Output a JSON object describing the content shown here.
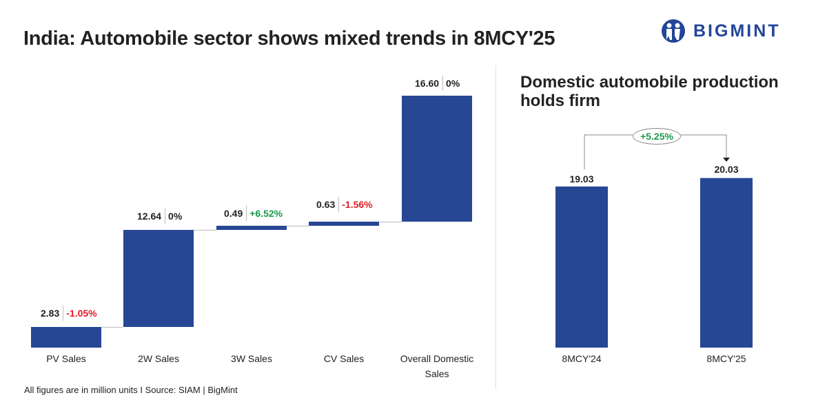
{
  "title": "India: Automobile sector shows mixed trends in 8MCY'25",
  "logo": {
    "text": "BIGMINT",
    "color": "#24449a"
  },
  "footer": "All figures are in million units  I  Source: SIAM | BigMint",
  "colors": {
    "bar": "#274794",
    "negative": "#e31b23",
    "positive": "#1a9a4a",
    "connector": "#cccccc"
  },
  "chart_data": [
    {
      "type": "waterfall",
      "title": "India: Automobile sector shows mixed trends in 8MCY'25",
      "categories": [
        "PV Sales",
        "2W Sales",
        "3W Sales",
        "CV Sales",
        "Overall Domestic Sales"
      ],
      "values": [
        2.83,
        12.64,
        0.49,
        0.63,
        16.6
      ],
      "value_labels": [
        "2.83",
        "12.64",
        "0.49",
        "0.63",
        "16.60"
      ],
      "changes": [
        "-1.05%",
        "0%",
        "+6.52%",
        "-1.56%",
        "0%"
      ],
      "change_colors": [
        "negative",
        "neutral",
        "positive",
        "negative",
        "neutral"
      ],
      "total_index": 4,
      "grid": false
    },
    {
      "type": "bar",
      "title": "Domestic automobile production holds firm",
      "categories": [
        "8MCY'24",
        "8MCY'25"
      ],
      "values": [
        19.03,
        20.03
      ],
      "value_labels": [
        "19.03",
        "20.03"
      ],
      "annotation": "+5.25%",
      "grid": false
    }
  ]
}
